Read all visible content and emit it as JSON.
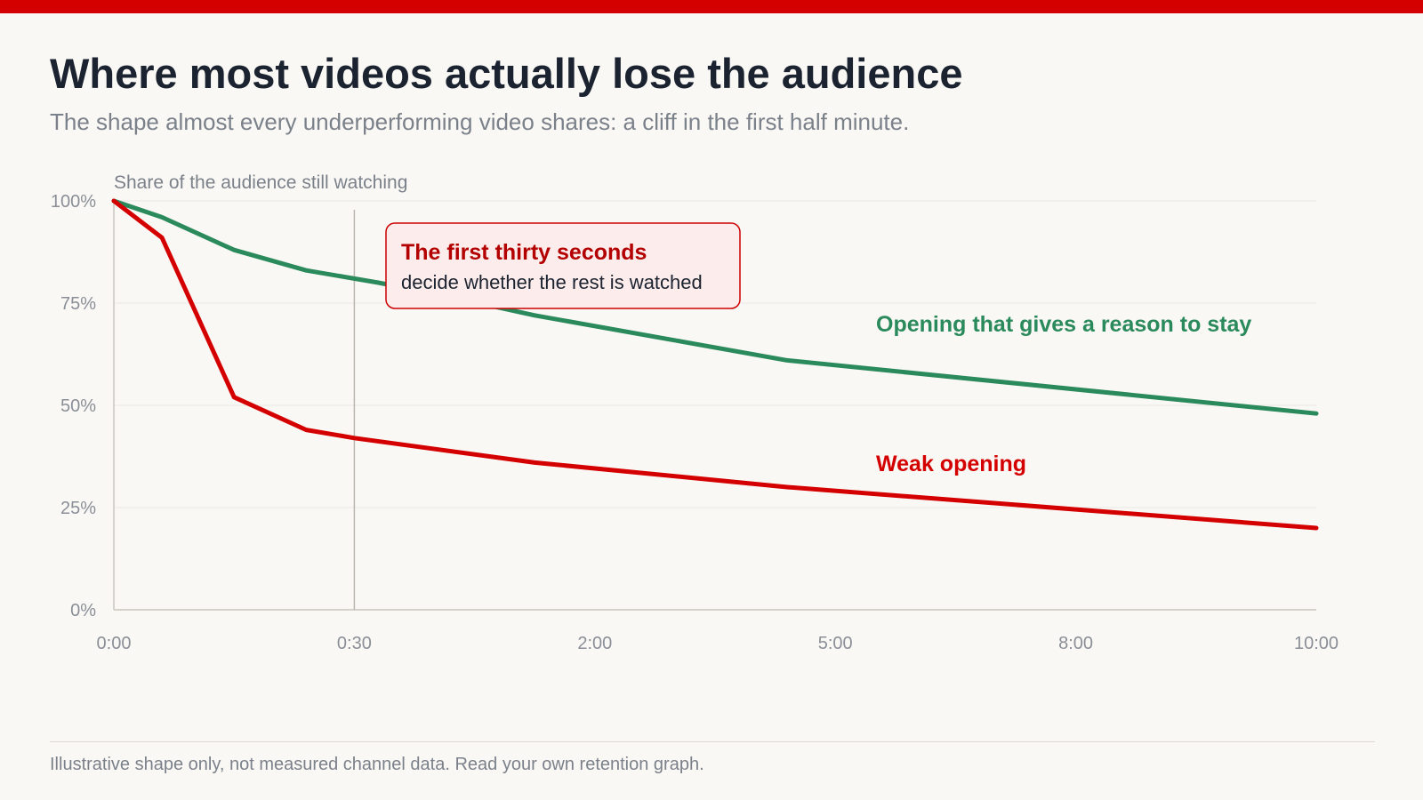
{
  "title": "Where most videos actually lose the audience",
  "subtitle": "The shape almost every underperforming video shares: a cliff in the first half minute.",
  "footnote": "Illustrative shape only, not measured channel data. Read your own retention graph.",
  "colors": {
    "accent_bar": "#d40000",
    "weak": "#d40000",
    "strong": "#2a8a5c",
    "callout_border": "#cc0000",
    "callout_fill": "#fdecec"
  },
  "chart_data": {
    "type": "line",
    "ylabel": "Share of the audience still watching",
    "xlabel": "",
    "x_ticks": [
      "0:00",
      "0:30",
      "2:00",
      "5:00",
      "8:00",
      "10:00"
    ],
    "y_ticks": [
      "0%",
      "25%",
      "50%",
      "75%",
      "100%"
    ],
    "ylim": [
      0,
      100
    ],
    "grid": true,
    "legend": "inline labels",
    "series": [
      {
        "name": "Opening that gives a reason to stay",
        "color": "#2a8a5c",
        "points": [
          [
            0,
            100
          ],
          [
            0.2,
            96
          ],
          [
            0.5,
            88
          ],
          [
            0.8,
            83
          ],
          [
            1.1,
            80
          ],
          [
            1.4,
            76.5
          ],
          [
            1.75,
            72
          ],
          [
            2.8,
            61
          ],
          [
            5,
            48
          ]
        ]
      },
      {
        "name": "Weak opening",
        "color": "#d40000",
        "points": [
          [
            0,
            100
          ],
          [
            0.2,
            91
          ],
          [
            0.5,
            52
          ],
          [
            0.8,
            44
          ],
          [
            1.0,
            42
          ],
          [
            1.75,
            36
          ],
          [
            2.8,
            30
          ],
          [
            5,
            20
          ]
        ]
      }
    ],
    "reference_line": {
      "at_tick": "0:30"
    },
    "annotation": {
      "title": "The first thirty seconds",
      "text": "decide whether the rest is watched"
    }
  }
}
